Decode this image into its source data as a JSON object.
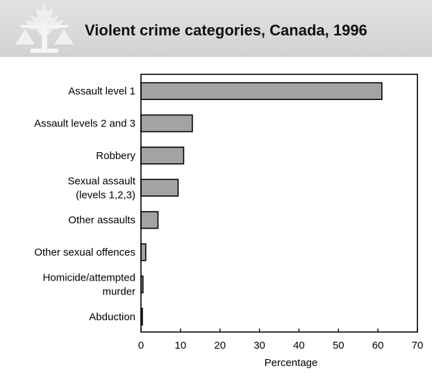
{
  "header": {
    "title": "Violent crime categories, Canada, 1996",
    "logo_icon": "maple-leaf-justice-scales-icon"
  },
  "colors": {
    "bar_fill": "#a3a3a3",
    "bar_stroke": "#000000",
    "header_bg": "#d9d9d9"
  },
  "chart_data": {
    "type": "bar",
    "orientation": "horizontal",
    "title": "Violent crime categories, Canada, 1996",
    "categories": [
      [
        "Assault level 1"
      ],
      [
        "Assault levels 2 and 3"
      ],
      [
        "Robbery"
      ],
      [
        "Sexual assault",
        "(levels 1,2,3)"
      ],
      [
        "Other assaults"
      ],
      [
        "Other sexual offences"
      ],
      [
        "Homicide/attempted",
        "murder"
      ],
      [
        "Abduction"
      ]
    ],
    "values": [
      61,
      13,
      10.8,
      9.4,
      4.3,
      1.2,
      0.5,
      0.3
    ],
    "xlabel": "Percentage",
    "ylabel": "",
    "xlim": [
      0,
      70
    ],
    "xticks": [
      "0",
      "10",
      "20",
      "30",
      "40",
      "50",
      "60",
      "70"
    ],
    "grid": false,
    "legend": "none"
  }
}
